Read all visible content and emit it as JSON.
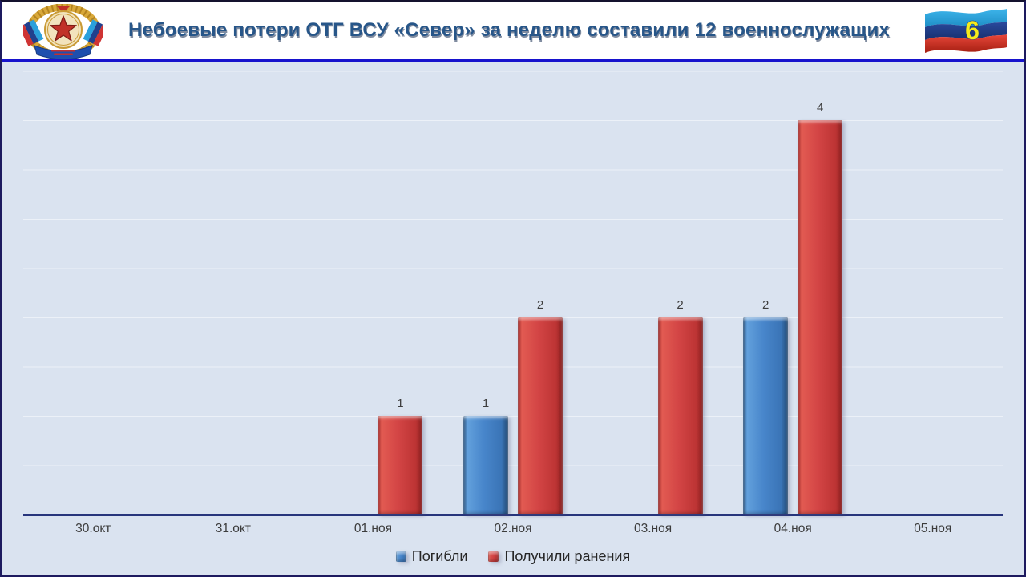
{
  "header": {
    "title": "Небоевые потери ОТГ ВСУ «Север» за неделю составили 12 военнослужащих",
    "slide_number": "6",
    "emblem_icon": "lnr-coat-of-arms",
    "flag_icon": "lnr-flag"
  },
  "chart_data": {
    "type": "bar",
    "title": "",
    "categories": [
      "30.окт",
      "31.окт",
      "01.ноя",
      "02.ноя",
      "03.ноя",
      "04.ноя",
      "05.ноя"
    ],
    "series": [
      {
        "name": "Погибли",
        "color": "#3e7cc4",
        "values": [
          0,
          0,
          0,
          1,
          0,
          2,
          0
        ]
      },
      {
        "name": "Получили ранения",
        "color": "#cd3b3b",
        "values": [
          0,
          0,
          1,
          2,
          2,
          4,
          0
        ]
      }
    ],
    "data_labels": true,
    "ylim": [
      0,
      4.5
    ],
    "grid": "faint-horizontal",
    "legend_position": "bottom"
  },
  "colors": {
    "header_bg": "#ffffff",
    "chart_bg": "#dae3f0",
    "separator": "#1713cd",
    "axis_line": "#27357c",
    "title_text": "#275689",
    "label_text": "#3d3d3d",
    "bar_blue": "#3e7cc4",
    "bar_red": "#cd3b3b"
  }
}
